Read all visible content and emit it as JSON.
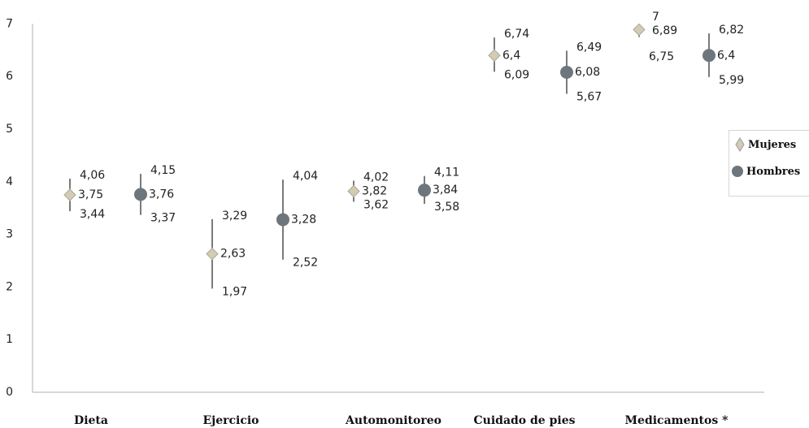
{
  "chart_data": {
    "type": "scatter",
    "categories": [
      "Dieta",
      "Ejercicio",
      "Automonitoreo",
      "Cuidado de pies",
      "Medicamentos  *"
    ],
    "y_ticks": [
      "0",
      "1",
      "2",
      "3",
      "4",
      "5",
      "6",
      "7"
    ],
    "ylim": [
      0,
      7
    ],
    "grid": false,
    "legend_position": "right",
    "series": [
      {
        "name": "Mujeres",
        "marker": "diamond",
        "color": "#d4cbb3",
        "mean": [
          3.75,
          2.63,
          3.82,
          6.4,
          6.89
        ],
        "low": [
          3.44,
          1.97,
          3.62,
          6.09,
          6.75
        ],
        "high": [
          4.06,
          3.29,
          4.02,
          6.74,
          7
        ],
        "mean_labels": [
          "3,75",
          "2,63",
          "3,82",
          "6,4",
          "6,89"
        ],
        "low_labels": [
          "3,44",
          "1,97",
          "3,62",
          "6,09",
          "6,75"
        ],
        "high_labels": [
          "4,06",
          "3,29",
          "4,02",
          "6,74",
          "7"
        ]
      },
      {
        "name": "Hombres",
        "marker": "circle",
        "color": "#6e767d",
        "mean": [
          3.76,
          3.28,
          3.84,
          6.08,
          6.4
        ],
        "low": [
          3.37,
          2.52,
          3.58,
          5.67,
          5.99
        ],
        "high": [
          4.15,
          4.04,
          4.11,
          6.49,
          6.82
        ],
        "mean_labels": [
          "3,76",
          "3,28",
          "3,84",
          "6,08",
          "6,4"
        ],
        "low_labels": [
          "3,37",
          "2,52",
          "3,58",
          "5,67",
          "5,99"
        ],
        "high_labels": [
          "4,15",
          "4,04",
          "4,11",
          "6,49",
          "6,82"
        ]
      }
    ]
  }
}
